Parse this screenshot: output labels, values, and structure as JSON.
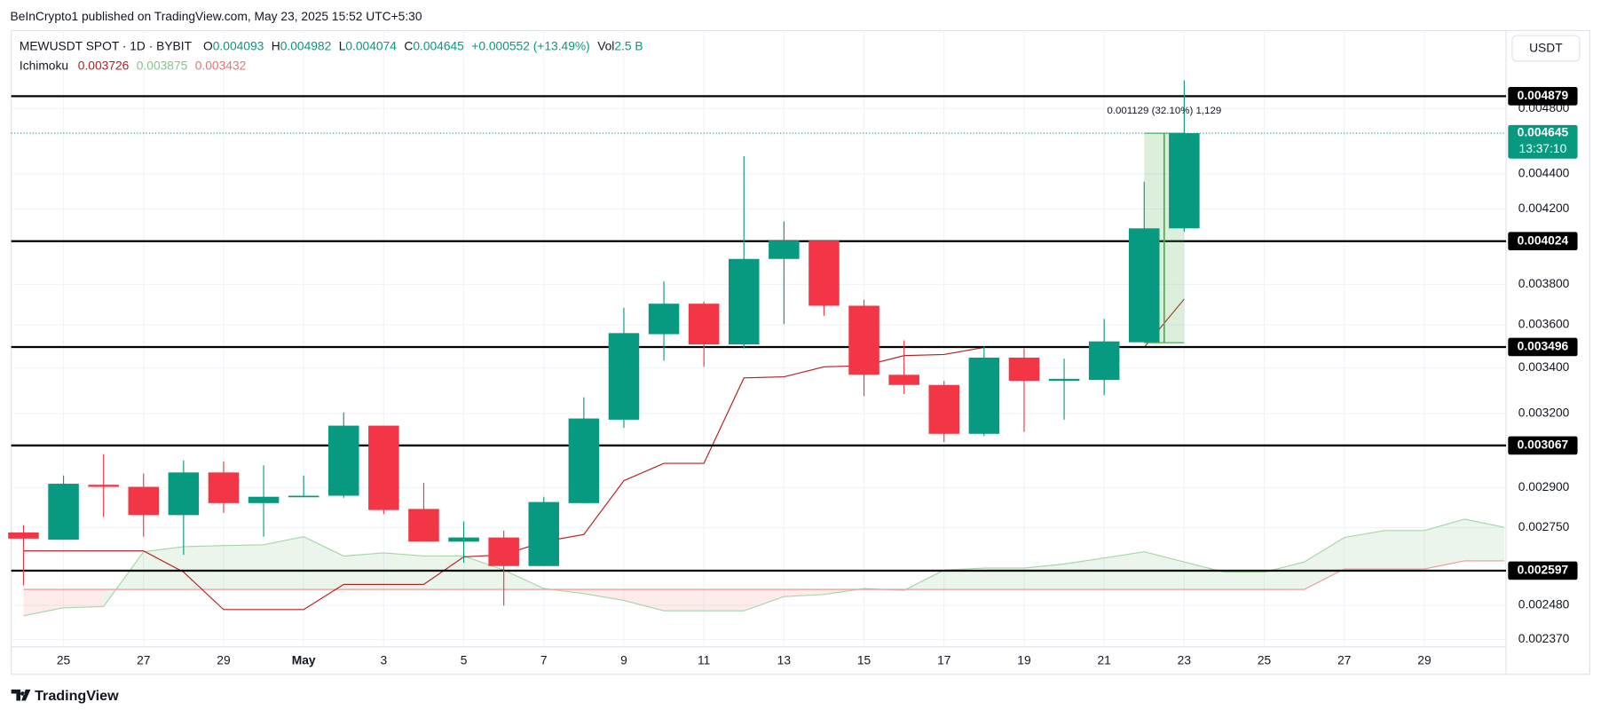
{
  "header": {
    "publisher": "BeInCrypto1 published on TradingView.com, May 23, 2025 15:52 UTC+5:30",
    "symbol": "MEWUSDT SPOT · 1D · BYBIT",
    "open_label": "O",
    "high_label": "H",
    "low_label": "L",
    "close_label": "C",
    "change": "+0.000552 (+13.49%)",
    "volume_label": "Vol",
    "volume": "2.5 B",
    "indicator": "Ichimoku",
    "lead_a_value": "0.003875",
    "lead_b_value": "0.003432",
    "brand": "TradingView"
  },
  "chart_data": {
    "type": "candlestick",
    "categories": [
      null,
      "25",
      null,
      "27",
      null,
      "29",
      null,
      "May",
      null,
      "3",
      null,
      "5",
      null,
      "7",
      null,
      "9",
      null,
      "11",
      null,
      "13",
      null,
      "15",
      null,
      "17",
      null,
      "19",
      null,
      "21",
      null,
      "23",
      null,
      "25",
      null,
      "27",
      null,
      "29",
      null,
      null
    ],
    "open": [
      0.002732,
      0.002706,
      0.002911,
      0.002903,
      0.002796,
      0.002959,
      0.002841,
      0.002865,
      0.002869,
      0.003149,
      0.002819,
      0.002699,
      0.002714,
      0.002613,
      0.002841,
      0.003174,
      0.003556,
      0.003703,
      0.003508,
      0.00393,
      0.004027,
      0.003693,
      0.003369,
      0.003324,
      0.003115,
      0.003447,
      0.003342,
      0.003346,
      0.003518,
      0.004093,
      null,
      null,
      null,
      null,
      null,
      null,
      null,
      null
    ],
    "high": [
      0.002759,
      0.002947,
      0.003032,
      0.002955,
      0.003007,
      0.003003,
      0.002987,
      0.002947,
      0.003205,
      0.003149,
      0.002919,
      0.002773,
      0.002739,
      0.002865,
      0.00327,
      0.003683,
      0.003815,
      0.003713,
      0.004505,
      0.004131,
      0.004027,
      0.003723,
      0.003527,
      0.003342,
      0.003499,
      0.003489,
      0.003442,
      0.003629,
      0.004355,
      0.004982,
      null,
      null,
      null,
      null,
      null,
      null,
      null,
      null
    ],
    "low": [
      0.002547,
      0.002706,
      0.002789,
      0.002717,
      0.002652,
      0.002804,
      0.002717,
      0.002865,
      0.002861,
      0.0028,
      0.002699,
      0.002624,
      0.002479,
      0.002613,
      0.002841,
      0.00314,
      0.003433,
      0.003405,
      0.003489,
      0.003604,
      0.003644,
      0.003275,
      0.003284,
      0.003081,
      0.003106,
      0.003123,
      0.003174,
      0.003279,
      0.003518,
      0.004074,
      null,
      null,
      null,
      null,
      null,
      null,
      null,
      null
    ],
    "close": [
      0.00271,
      0.002915,
      0.002903,
      0.002796,
      0.002959,
      0.002841,
      0.002865,
      0.002869,
      0.003149,
      0.002815,
      0.002699,
      0.002714,
      0.002613,
      0.002845,
      0.003179,
      0.003561,
      0.003703,
      0.003508,
      0.00393,
      0.004027,
      0.003693,
      0.003369,
      0.003324,
      0.003115,
      0.003447,
      0.003342,
      0.003351,
      0.003522,
      0.004093,
      0.004645,
      null,
      null,
      null,
      null,
      null,
      null,
      null,
      null
    ],
    "up_color": "#089981",
    "down_color": "#f23645",
    "ichimoku": {
      "conversion": {
        "color": "#b71c1c",
        "values": [
          0.002666,
          0.002666,
          0.002666,
          0.002666,
          0.002592,
          0.002466,
          0.002466,
          0.002466,
          0.00255,
          0.00255,
          0.00255,
          0.002645,
          0.002652,
          0.002699,
          0.002725,
          0.002927,
          0.002995,
          0.002995,
          0.003355,
          0.00336,
          0.003405,
          0.00341,
          0.003456,
          0.003461,
          0.003494,
          0.003494,
          0.003494,
          0.003494,
          0.003494,
          0.003726,
          null,
          null,
          null,
          null,
          null,
          null,
          null,
          null
        ]
      },
      "lead_a": {
        "color": "#a5d6a7",
        "values": [
          0.002446,
          0.002472,
          0.002476,
          0.002663,
          0.002681,
          0.002685,
          0.002688,
          0.002717,
          0.002648,
          0.002659,
          0.002648,
          0.002648,
          0.002599,
          0.002536,
          0.002519,
          0.002496,
          0.002462,
          0.002462,
          0.002462,
          0.002509,
          0.002516,
          0.002536,
          0.00253,
          0.002599,
          0.002606,
          0.002606,
          0.00262,
          0.002641,
          0.002663,
          0.002627,
          0.002592,
          0.002592,
          0.002627,
          0.002714,
          0.002739,
          0.002739,
          0.002781,
          0.002751
        ]
      },
      "lead_b": {
        "color": "#ef9a9a",
        "values": [
          0.002533,
          0.002533,
          0.002533,
          0.002533,
          0.002533,
          0.002533,
          0.002533,
          0.002533,
          0.002533,
          0.002533,
          0.002533,
          0.002533,
          0.002533,
          0.002533,
          0.002533,
          0.002533,
          0.002533,
          0.002533,
          0.002533,
          0.002533,
          0.002533,
          0.002533,
          0.002533,
          0.002533,
          0.002533,
          0.002533,
          0.002533,
          0.002533,
          0.002533,
          0.002533,
          0.002533,
          0.002533,
          0.002533,
          0.002603,
          0.002603,
          0.002603,
          0.002631,
          0.002631
        ]
      }
    },
    "levels": [
      0.004879,
      0.004024,
      0.003496,
      0.003067,
      0.002597
    ],
    "last_price": 0.004645,
    "countdown": "13:37:10",
    "measure": {
      "from": 0.003516,
      "to": 0.004645,
      "label": "0.001129 (32.10%) 1,129"
    },
    "currency": "USDT",
    "ylim": [
      0.002347,
      0.005324
    ],
    "log_scale": true,
    "grid": true,
    "yticks": [
      {
        "value": 0.0048,
        "label": "0.004800"
      },
      {
        "value": 0.0044,
        "label": "0.004400"
      },
      {
        "value": 0.0042,
        "label": "0.004200"
      },
      {
        "value": 0.0038,
        "label": "0.003800"
      },
      {
        "value": 0.0036,
        "label": "0.003600"
      },
      {
        "value": 0.0034,
        "label": "0.003400"
      },
      {
        "value": 0.0032,
        "label": "0.003200"
      },
      {
        "value": 0.0029,
        "label": "0.002900"
      },
      {
        "value": 0.00275,
        "label": "0.002750"
      },
      {
        "value": 0.00248,
        "label": "0.002480"
      },
      {
        "value": 0.00237,
        "label": "0.002370"
      }
    ]
  }
}
